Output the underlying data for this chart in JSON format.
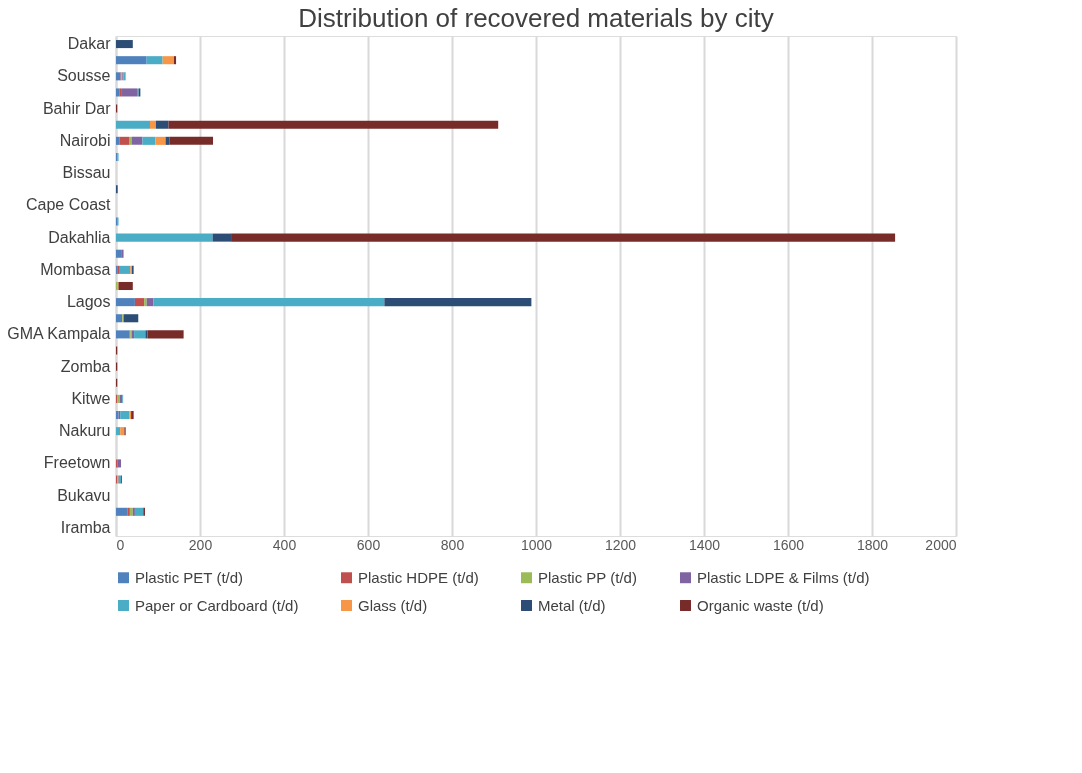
{
  "chart_data": {
    "type": "bar",
    "orientation": "horizontal",
    "stacked": true,
    "title": "Distribution of recovered materials by city",
    "categories": [
      "Dakar",
      null,
      "Sousse",
      null,
      "Bahir Dar",
      null,
      "Nairobi",
      null,
      "Bissau",
      null,
      "Cape Coast",
      null,
      "Dakahlia",
      null,
      "Mombasa",
      null,
      "Lagos",
      null,
      "GMA Kampala",
      null,
      "Zomba",
      null,
      "Kitwe",
      null,
      "Nakuru",
      null,
      "Freetown",
      null,
      "Bukavu",
      null,
      "Iramba"
    ],
    "series": [
      {
        "name": "Plastic PET (t/d)",
        "color": "#4f81bd",
        "values": [
          null,
          73,
          11,
          9,
          null,
          null,
          9,
          3,
          null,
          null,
          null,
          4,
          null,
          14,
          3,
          null,
          45,
          12,
          32,
          null,
          null,
          null,
          null,
          6,
          null,
          null,
          null,
          null,
          null,
          28,
          null
        ]
      },
      {
        "name": "Plastic HDPE (t/d)",
        "color": "#c0504d",
        "values": [
          null,
          null,
          2,
          5,
          null,
          null,
          22,
          null,
          null,
          null,
          null,
          null,
          null,
          null,
          6,
          null,
          22,
          3,
          2,
          null,
          null,
          null,
          3,
          null,
          null,
          null,
          4,
          3,
          null,
          5,
          null
        ]
      },
      {
        "name": "Plastic PP (t/d)",
        "color": "#9bbb59",
        "values": [
          null,
          null,
          2,
          null,
          null,
          null,
          7,
          null,
          null,
          null,
          null,
          null,
          null,
          null,
          null,
          4,
          6,
          3,
          3,
          null,
          null,
          null,
          6,
          null,
          null,
          null,
          null,
          3,
          null,
          7,
          null
        ]
      },
      {
        "name": "Plastic LDPE & Films (t/d)",
        "color": "#8064a2",
        "values": [
          null,
          null,
          3,
          36,
          null,
          null,
          25,
          null,
          null,
          null,
          null,
          null,
          null,
          4,
          null,
          null,
          16,
          null,
          6,
          null,
          null,
          null,
          6,
          4,
          null,
          null,
          8,
          3,
          null,
          5,
          null
        ]
      },
      {
        "name": "Paper or Cardboard (t/d)",
        "color": "#4bacc6",
        "values": [
          null,
          38,
          4,
          4,
          null,
          81,
          31,
          3,
          null,
          null,
          null,
          2,
          230,
          null,
          25,
          null,
          550,
          null,
          27,
          null,
          null,
          null,
          2,
          22,
          10,
          null,
          null,
          3,
          null,
          20,
          null
        ]
      },
      {
        "name": "Glass (t/d)",
        "color": "#f79646",
        "values": [
          null,
          27,
          2,
          null,
          null,
          14,
          24,
          null,
          null,
          null,
          null,
          null,
          null,
          null,
          4,
          2,
          null,
          null,
          null,
          null,
          null,
          null,
          null,
          4,
          10,
          null,
          null,
          null,
          null,
          null,
          null
        ]
      },
      {
        "name": "Metal (t/d)",
        "color": "#2c4d75",
        "values": [
          40,
          null,
          null,
          4,
          null,
          30,
          9,
          null,
          null,
          4,
          null,
          null,
          44,
          null,
          4,
          null,
          350,
          35,
          5,
          null,
          null,
          null,
          null,
          null,
          null,
          null,
          null,
          null,
          null,
          null,
          null
        ]
      },
      {
        "name": "Organic waste (t/d)",
        "color": "#772c2a",
        "values": [
          null,
          5,
          null,
          null,
          3,
          785,
          104,
          null,
          null,
          null,
          null,
          null,
          1581,
          null,
          null,
          34,
          null,
          null,
          86,
          3,
          3,
          3,
          null,
          6,
          3,
          null,
          null,
          2,
          null,
          4,
          null
        ]
      }
    ],
    "xlim": [
      0,
      2000
    ],
    "xticks": [
      0,
      200,
      400,
      600,
      800,
      1000,
      1200,
      1400,
      1600,
      1800,
      2000
    ],
    "grid": "x",
    "legend": "bottom"
  }
}
